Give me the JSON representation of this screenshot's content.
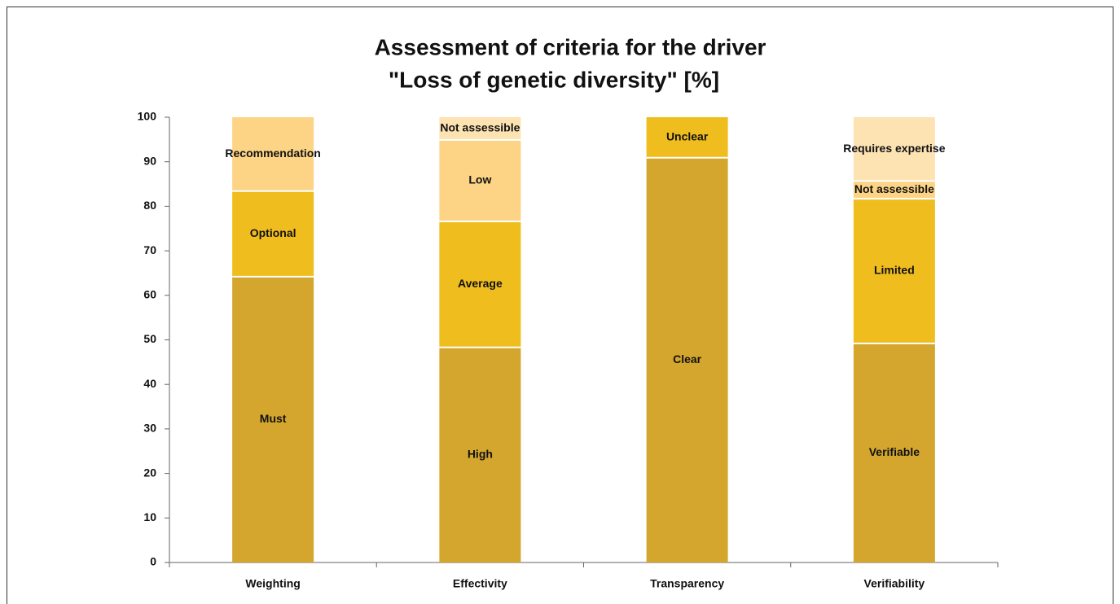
{
  "chart_data": {
    "type": "stacked_bar",
    "title": [
      "Assessment of criteria for the driver",
      "\"Loss of genetic diversity\" [%]"
    ],
    "categories": [
      "Weighting",
      "Effectivity",
      "Transparency",
      "Verifiability"
    ],
    "stacks": [
      [
        {
          "label": "Must",
          "value": 64.2,
          "color": "#d4a62e"
        },
        {
          "label": "Optional",
          "value": 19.2,
          "color": "#f0bd1e"
        },
        {
          "label": "Recommendation",
          "value": 16.6,
          "color": "#fdd485"
        }
      ],
      [
        {
          "label": "High",
          "value": 48.3,
          "color": "#d4a62e"
        },
        {
          "label": "Average",
          "value": 28.3,
          "color": "#f0bd1e"
        },
        {
          "label": "Low",
          "value": 18.3,
          "color": "#fdd485"
        },
        {
          "label": "Not assessible",
          "value": 5.1,
          "color": "#fde2b2"
        }
      ],
      [
        {
          "label": "Clear",
          "value": 90.9,
          "color": "#d4a62e"
        },
        {
          "label": "Unclear",
          "value": 9.1,
          "color": "#f0bd1e"
        }
      ],
      [
        {
          "label": "Verifiable",
          "value": 49.2,
          "color": "#d4a62e"
        },
        {
          "label": "Limited",
          "value": 32.5,
          "color": "#f0bd1e"
        },
        {
          "label": "Not assessible",
          "value": 4.0,
          "color": "#fdd485"
        },
        {
          "label": "Requires expertise",
          "value": 14.3,
          "color": "#fde2b2"
        }
      ]
    ],
    "ylim": [
      0,
      100
    ],
    "yticks": [
      0,
      10,
      20,
      30,
      40,
      50,
      60,
      70,
      80,
      90,
      100
    ]
  }
}
